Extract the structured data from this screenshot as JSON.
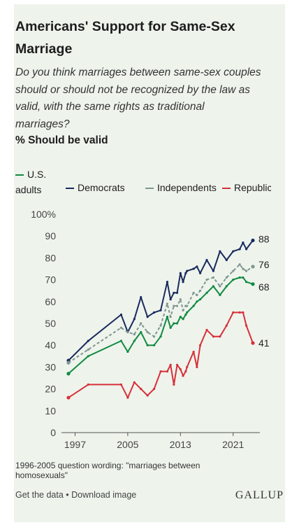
{
  "title": "Americans' Support for Same-Sex Marriage",
  "subtitle": "Do you think marriages between same-sex couples should or should not be recognized by the law as valid, with the same rights as traditional marriages?",
  "measure": "% Should be valid",
  "note": "1996-2005 question wording: \"marriages between homosexuals\"",
  "footer": {
    "get_data": "Get the data",
    "separator": " • ",
    "download": "Download image"
  },
  "brand": "GALLUP",
  "chart_data": {
    "type": "line",
    "title": "Americans' Support for Same-Sex Marriage",
    "ylim": [
      0,
      100
    ],
    "xlim": [
      1996,
      2024
    ],
    "y_ticks": [
      "0",
      "10",
      "20",
      "30",
      "40",
      "50",
      "60",
      "70",
      "80",
      "90",
      "100%"
    ],
    "x_ticks": [
      "1997",
      "2005",
      "2013",
      "2021"
    ],
    "grid": false,
    "legend_position": "top",
    "series": [
      {
        "name": "U.S. adults",
        "color": "#128a41",
        "dash": false,
        "end_label": "68",
        "points": [
          [
            1996,
            27
          ],
          [
            1999,
            35
          ],
          [
            2004,
            42
          ],
          [
            2005,
            37
          ],
          [
            2006,
            42
          ],
          [
            2007,
            46
          ],
          [
            2008,
            40
          ],
          [
            2009,
            40
          ],
          [
            2010,
            44
          ],
          [
            2011,
            53
          ],
          [
            2011.5,
            48
          ],
          [
            2012,
            50
          ],
          [
            2012.5,
            50
          ],
          [
            2013,
            53
          ],
          [
            2013.4,
            52
          ],
          [
            2013.8,
            54
          ],
          [
            2014,
            55
          ],
          [
            2015,
            58
          ],
          [
            2015.5,
            60
          ],
          [
            2016,
            61
          ],
          [
            2017,
            64
          ],
          [
            2018,
            67
          ],
          [
            2019,
            63
          ],
          [
            2020,
            67
          ],
          [
            2021,
            70
          ],
          [
            2022,
            71
          ],
          [
            2022.5,
            71
          ],
          [
            2023,
            69
          ],
          [
            2024,
            68
          ]
        ]
      },
      {
        "name": "Democrats",
        "color": "#1a2a5e",
        "dash": false,
        "end_label": "88",
        "points": [
          [
            1996,
            33
          ],
          [
            1999,
            42
          ],
          [
            2004,
            54
          ],
          [
            2005,
            46
          ],
          [
            2006,
            52
          ],
          [
            2007,
            62
          ],
          [
            2008,
            53
          ],
          [
            2009,
            55
          ],
          [
            2010,
            56
          ],
          [
            2011,
            69
          ],
          [
            2011.5,
            61
          ],
          [
            2012,
            64
          ],
          [
            2012.5,
            64
          ],
          [
            2013,
            73
          ],
          [
            2013.4,
            69
          ],
          [
            2013.8,
            73
          ],
          [
            2014,
            74
          ],
          [
            2015,
            75
          ],
          [
            2015.5,
            76
          ],
          [
            2016,
            73
          ],
          [
            2017,
            79
          ],
          [
            2018,
            74
          ],
          [
            2019,
            83
          ],
          [
            2020,
            79
          ],
          [
            2021,
            83
          ],
          [
            2022,
            84
          ],
          [
            2022.5,
            87
          ],
          [
            2023,
            84
          ],
          [
            2024,
            88
          ]
        ]
      },
      {
        "name": "Independents",
        "color": "#7f9691",
        "dash": true,
        "end_label": "76",
        "points": [
          [
            1996,
            32
          ],
          [
            1999,
            38
          ],
          [
            2004,
            48
          ],
          [
            2005,
            46
          ],
          [
            2006,
            45
          ],
          [
            2007,
            50
          ],
          [
            2008,
            46
          ],
          [
            2009,
            44
          ],
          [
            2010,
            49
          ],
          [
            2011,
            59
          ],
          [
            2011.5,
            53
          ],
          [
            2012,
            58
          ],
          [
            2012.5,
            58
          ],
          [
            2013,
            61
          ],
          [
            2013.4,
            56
          ],
          [
            2013.8,
            58
          ],
          [
            2014,
            58
          ],
          [
            2015,
            64
          ],
          [
            2015.5,
            63
          ],
          [
            2016,
            65
          ],
          [
            2017,
            70
          ],
          [
            2018,
            71
          ],
          [
            2019,
            67
          ],
          [
            2020,
            71
          ],
          [
            2021,
            74
          ],
          [
            2022,
            77
          ],
          [
            2022.5,
            75
          ],
          [
            2023,
            74
          ],
          [
            2024,
            76
          ]
        ]
      },
      {
        "name": "Republicans",
        "color": "#d8303a",
        "dash": false,
        "end_label": "41",
        "points": [
          [
            1996,
            16
          ],
          [
            1999,
            22
          ],
          [
            2004,
            22
          ],
          [
            2005,
            16
          ],
          [
            2006,
            23
          ],
          [
            2007,
            20
          ],
          [
            2008,
            17
          ],
          [
            2009,
            20
          ],
          [
            2010,
            28
          ],
          [
            2011,
            28
          ],
          [
            2011.5,
            31
          ],
          [
            2012,
            22
          ],
          [
            2012.5,
            31
          ],
          [
            2013,
            29
          ],
          [
            2013.4,
            26
          ],
          [
            2013.8,
            28
          ],
          [
            2014,
            30
          ],
          [
            2015,
            37
          ],
          [
            2015.5,
            30
          ],
          [
            2016,
            40
          ],
          [
            2017,
            47
          ],
          [
            2018,
            44
          ],
          [
            2019,
            44
          ],
          [
            2020,
            49
          ],
          [
            2021,
            55
          ],
          [
            2022,
            55
          ],
          [
            2022.5,
            55
          ],
          [
            2023,
            49
          ],
          [
            2024,
            41
          ]
        ]
      }
    ]
  }
}
